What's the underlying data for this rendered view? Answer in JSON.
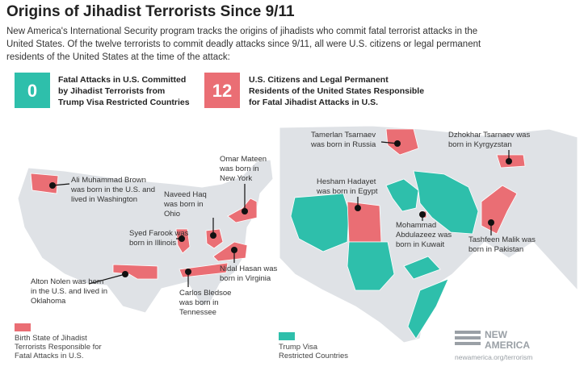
{
  "header": {
    "title": "Origins of Jihadist Terrorists Since 9/11",
    "intro": [
      "New America's International Security program tracks the origins of jihadists who commit fatal terrorist attacks in the",
      "United States. Of the twelve terrorists to commit deadly attacks since 9/11, all were U.S. citizens or legal permanent",
      "residents of the United States at the time of the attack:"
    ]
  },
  "stats": [
    {
      "number": "0",
      "label": [
        "Fatal Attacks in U.S. Committed",
        "by Jihadist Terrorists from",
        "Trump Visa Restricted Countries"
      ]
    },
    {
      "number": "12",
      "label": [
        "U.S. Citizens and Legal Permanent",
        "Residents of the United States Responsible",
        "for Fatal Jihadist Attacks in U.S."
      ]
    }
  ],
  "us_map": {
    "annotations": [
      {
        "lines": [
          "Ali Muhammad Brown",
          "was born in the U.S. and",
          "lived in Washington"
        ]
      },
      {
        "lines": [
          "Omar Mateen",
          "was born in",
          "New York"
        ]
      },
      {
        "lines": [
          "Naveed Haq",
          "was born in",
          "Ohio"
        ]
      },
      {
        "lines": [
          "Syed Farook was",
          "born in Illinois"
        ]
      },
      {
        "lines": [
          "Nidal Hasan was",
          "born in Virginia"
        ]
      },
      {
        "lines": [
          "Alton Nolen was born",
          "in the U.S. and lived in",
          "Oklahoma"
        ]
      },
      {
        "lines": [
          "Carlos Bledsoe",
          "was born in",
          "Tennessee"
        ]
      }
    ]
  },
  "world_map": {
    "annotations": [
      {
        "lines": [
          "Tamerlan Tsarnaev",
          "was born in Russia"
        ]
      },
      {
        "lines": [
          "Dzhokhar Tsarnaev was",
          "born in Kyrgyzstan"
        ]
      },
      {
        "lines": [
          "Hesham Hadayet",
          "was born in Egypt"
        ]
      },
      {
        "lines": [
          "Mohammad",
          "Abdulazeez was",
          "born in Kuwait"
        ]
      },
      {
        "lines": [
          "Tashfeen Malik was",
          "born in Pakistan"
        ]
      }
    ]
  },
  "legend": {
    "birth_state": [
      "Birth State of Jihadist",
      "Terrorists Responsible for",
      "Fatal Attacks in U.S."
    ],
    "visa": [
      "Trump Visa",
      "Restricted Countries"
    ]
  },
  "footer": {
    "logo": [
      "NEW",
      "AMERICA"
    ],
    "url": "newamerica.org/terrorism"
  }
}
